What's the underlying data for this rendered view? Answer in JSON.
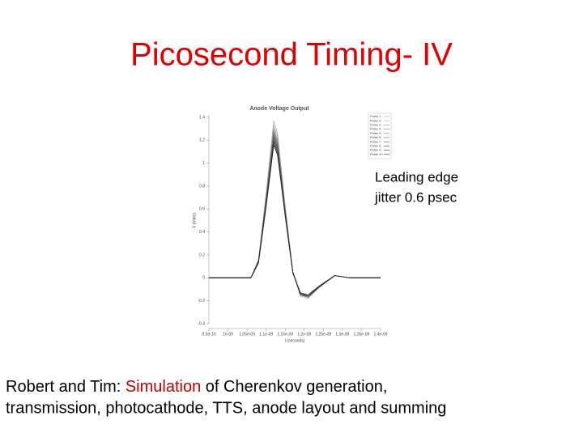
{
  "slide": {
    "title": "Picosecond Timing- IV",
    "annotation": [
      "Leading edge",
      "jitter 0.6 psec"
    ],
    "footer": [
      "Robert and Tim: ",
      "Simulation",
      " of Cherenkov generation,",
      "transmission, photocathode, TTS, anode layout and summing"
    ]
  },
  "chart_data": {
    "type": "line",
    "title": "Anode Voltage Output",
    "x_label": "t (seconds)",
    "y_label": "V (Volts)",
    "x": [
      9.5e-10,
      1.06e-09,
      1.08e-09,
      1.1e-09,
      1.12e-09,
      1.13e-09,
      1.15e-09,
      1.17e-09,
      1.19e-09,
      1.21e-09,
      1.24e-09,
      1.28e-09,
      1.32e-09,
      1.4e-09
    ],
    "xlim": [
      9.5e-10,
      1.4e-09
    ],
    "xticks": [
      {
        "value": 9.5e-10,
        "label": "9.5e-10"
      },
      {
        "value": 1e-09,
        "label": "1e-09"
      },
      {
        "value": 1.05e-09,
        "label": "1.05e-09"
      },
      {
        "value": 1.1e-09,
        "label": "1.1e-09"
      },
      {
        "value": 1.15e-09,
        "label": "1.15e-09"
      },
      {
        "value": 1.2e-09,
        "label": "1.2e-09"
      },
      {
        "value": 1.25e-09,
        "label": "1.25e-09"
      },
      {
        "value": 1.3e-09,
        "label": "1.3e-09"
      },
      {
        "value": 1.35e-09,
        "label": "1.35e-09"
      },
      {
        "value": 1.4e-09,
        "label": "1.4e-09"
      }
    ],
    "ylim": [
      -0.4,
      1.4
    ],
    "yticks": [
      -0.4,
      -0.2,
      0,
      0.2,
      0.4,
      0.6,
      0.8,
      1,
      1.2,
      1.4
    ],
    "series": [
      {
        "name": "Pulse 1",
        "color": "#b0b0b0",
        "values": [
          0,
          0,
          0.16,
          0.74,
          1.37,
          1.26,
          0.63,
          0.05,
          -0.16,
          -0.18,
          -0.08,
          0.02,
          0,
          0
        ]
      },
      {
        "name": "Pulse 2",
        "color": "#a0a0a0",
        "values": [
          0,
          0,
          0.15,
          0.72,
          1.33,
          1.23,
          0.61,
          0.05,
          -0.15,
          -0.17,
          -0.08,
          0.02,
          0,
          0
        ]
      },
      {
        "name": "Pulse 3",
        "color": "#909090",
        "values": [
          0,
          0,
          0.15,
          0.7,
          1.3,
          1.2,
          0.6,
          0.05,
          -0.15,
          -0.17,
          -0.08,
          0.02,
          0,
          0
        ]
      },
      {
        "name": "Pulse 4",
        "color": "#808080",
        "values": [
          0,
          0,
          0.15,
          0.69,
          1.28,
          1.18,
          0.59,
          0.05,
          -0.15,
          -0.17,
          -0.08,
          0.02,
          0,
          0
        ]
      },
      {
        "name": "Pulse 5",
        "color": "#707070",
        "values": [
          0,
          0,
          0.15,
          0.68,
          1.26,
          1.16,
          0.58,
          0.05,
          -0.15,
          -0.16,
          -0.08,
          0.02,
          0,
          0
        ]
      },
      {
        "name": "Pulse 6",
        "color": "#606060",
        "values": [
          0,
          0,
          0.14,
          0.67,
          1.24,
          1.14,
          0.57,
          0.05,
          -0.14,
          -0.16,
          -0.08,
          0.02,
          0,
          0
        ]
      },
      {
        "name": "Pulse 7",
        "color": "#505050",
        "values": [
          0,
          0,
          0.14,
          0.66,
          1.22,
          1.13,
          0.56,
          0.05,
          -0.14,
          -0.16,
          -0.08,
          0.02,
          0,
          0
        ]
      },
      {
        "name": "Pulse 8",
        "color": "#404040",
        "values": [
          0,
          0,
          0.14,
          0.65,
          1.2,
          1.11,
          0.55,
          0.05,
          -0.14,
          -0.16,
          -0.07,
          0.02,
          0,
          0
        ]
      },
      {
        "name": "Pulse 9",
        "color": "#303030",
        "values": [
          0,
          0,
          0.14,
          0.64,
          1.18,
          1.09,
          0.54,
          0.05,
          -0.14,
          -0.15,
          -0.07,
          0.02,
          0,
          0
        ]
      },
      {
        "name": "Pulse 10",
        "color": "#202020",
        "values": [
          0,
          0,
          0.13,
          0.62,
          1.16,
          1.07,
          0.54,
          0.04,
          -0.13,
          -0.15,
          -0.07,
          0.02,
          0,
          0
        ]
      }
    ]
  }
}
